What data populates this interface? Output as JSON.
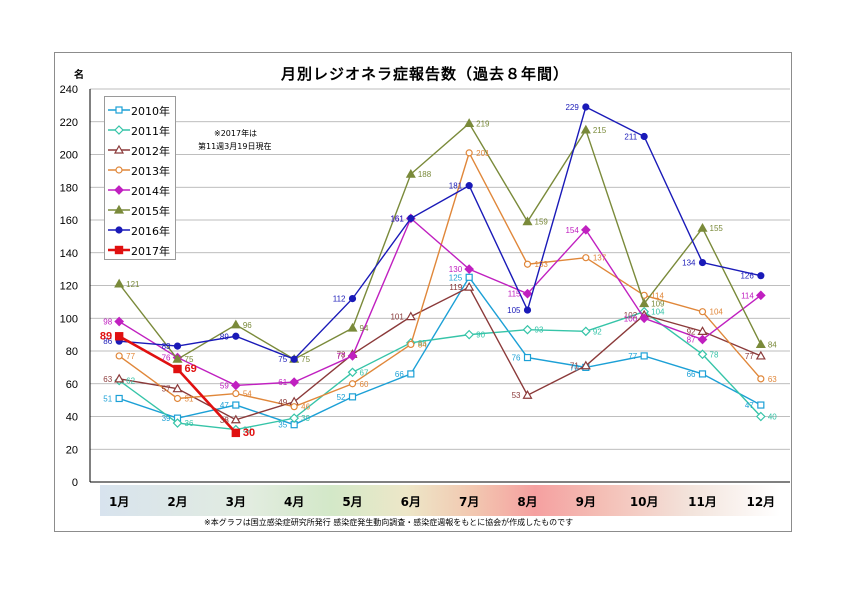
{
  "chart_data": {
    "type": "line",
    "title": "月別レジオネラ症報告数（過去８年間）",
    "ylabel": "名",
    "ylim": [
      0,
      240
    ],
    "yticks": [
      0,
      20,
      40,
      60,
      80,
      100,
      120,
      140,
      160,
      180,
      200,
      220,
      240
    ],
    "categories": [
      "1月",
      "2月",
      "3月",
      "4月",
      "5月",
      "6月",
      "7月",
      "8月",
      "9月",
      "10月",
      "11月",
      "12月"
    ],
    "grid": true,
    "legend_position": "top-left",
    "note": [
      "※2017年は",
      "第11週3月19日現在"
    ],
    "footnote": "※本グラフは国立感染症研究所発行 感染症発生動向調査・感染症週報をもとに協会が作成したものです",
    "series": [
      {
        "name": "2010年",
        "color": "#1ca0d6",
        "marker": "square-open",
        "values": [
          51,
          39,
          47,
          35,
          52,
          66,
          125,
          76,
          70,
          77,
          66,
          47
        ]
      },
      {
        "name": "2011年",
        "color": "#36c4a8",
        "marker": "diamond-open",
        "values": [
          62,
          36,
          32,
          39,
          67,
          85,
          90,
          93,
          92,
          104,
          78,
          40
        ]
      },
      {
        "name": "2012年",
        "color": "#8b3a3a",
        "marker": "triangle-open",
        "values": [
          63,
          57,
          38,
          49,
          78,
          101,
          119,
          53,
          71,
          102,
          92,
          77
        ]
      },
      {
        "name": "2013年",
        "color": "#e0873a",
        "marker": "circle-open",
        "values": [
          77,
          51,
          54,
          46,
          60,
          84,
          201,
          133,
          137,
          114,
          104,
          63
        ]
      },
      {
        "name": "2014年",
        "color": "#c020c0",
        "marker": "diamond",
        "values": [
          98,
          76,
          59,
          61,
          77,
          161,
          130,
          115,
          154,
          100,
          87,
          114
        ]
      },
      {
        "name": "2015年",
        "color": "#7a8a3a",
        "marker": "triangle",
        "values": [
          121,
          75,
          96,
          75,
          94,
          188,
          219,
          159,
          215,
          109,
          155,
          84
        ]
      },
      {
        "name": "2016年",
        "color": "#1a1ab8",
        "marker": "circle",
        "values": [
          86,
          83,
          89,
          75,
          112,
          161,
          181,
          105,
          229,
          211,
          134,
          126
        ]
      },
      {
        "name": "2017年",
        "color": "#e01010",
        "marker": "square",
        "values": [
          89,
          69,
          30,
          null,
          null,
          null,
          null,
          null,
          null,
          null,
          null,
          null
        ]
      }
    ]
  }
}
